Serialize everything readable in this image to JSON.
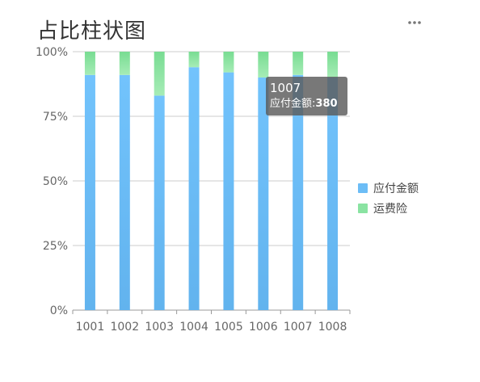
{
  "title": "占比柱状图",
  "more_icon": "more-horizontal-icon",
  "colors": {
    "series_0_top": "#72c3fc",
    "series_0_bottom": "#62b3ee",
    "series_1_top": "#78dc92",
    "series_1_bottom": "#a6ecb6",
    "axis": "#999999",
    "grid": "#cccccc"
  },
  "tooltip": {
    "category": "1007",
    "series_name": "应付金额",
    "value": "380"
  },
  "chart_data": {
    "type": "bar",
    "stacked": "percent",
    "categories": [
      "1001",
      "1002",
      "1003",
      "1004",
      "1005",
      "1006",
      "1007",
      "1008"
    ],
    "series": [
      {
        "name": "应付金额",
        "values": [
          91,
          91,
          83,
          94,
          92,
          90,
          91,
          90
        ]
      },
      {
        "name": "运费险",
        "values": [
          9,
          9,
          17,
          6,
          8,
          10,
          9,
          10
        ]
      }
    ],
    "y_ticks": [
      "0%",
      "25%",
      "50%",
      "75%",
      "100%"
    ],
    "ylim": [
      0,
      100
    ],
    "grid": true,
    "legend_position": "right"
  }
}
